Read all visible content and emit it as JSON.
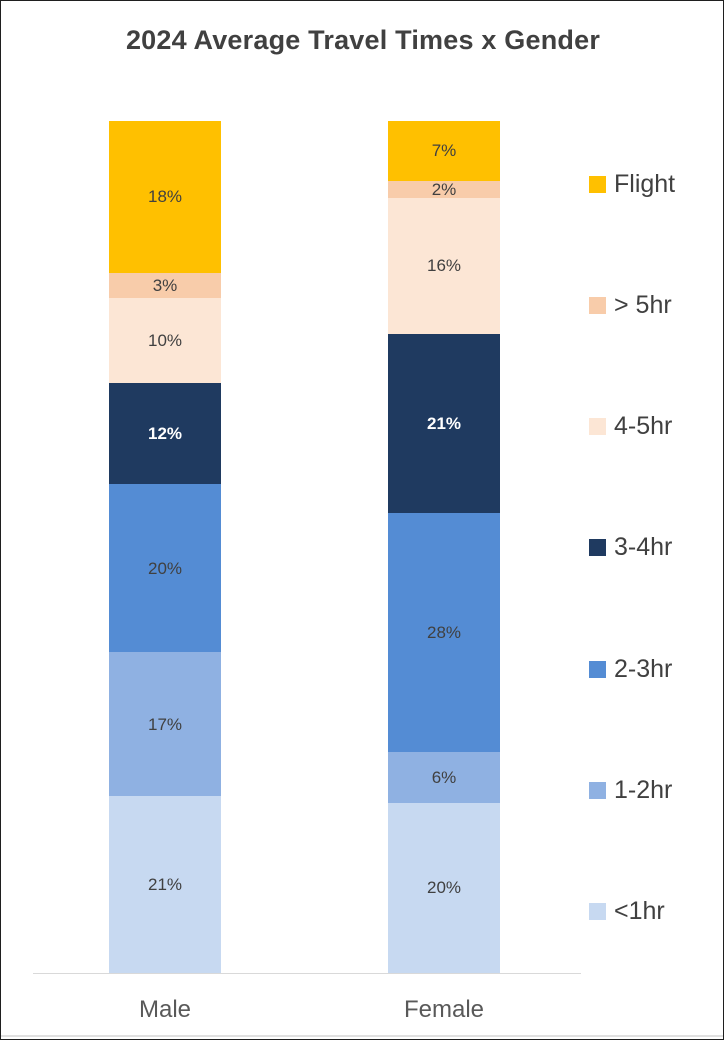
{
  "chart_data": {
    "type": "bar",
    "stacked": true,
    "percent_stacked": true,
    "title": "2024 Average Travel Times x Gender",
    "categories": [
      "Male",
      "Female"
    ],
    "series": [
      {
        "name": "<1hr",
        "color": "#C7D9F1",
        "values": [
          21,
          20
        ],
        "labels": [
          "21%",
          "20%"
        ],
        "label_color": "#404040",
        "label_bold": false
      },
      {
        "name": "1-2hr",
        "color": "#8FB1E2",
        "values": [
          17,
          6
        ],
        "labels": [
          "17%",
          "6%"
        ],
        "label_color": "#404040",
        "label_bold": false
      },
      {
        "name": "2-3hr",
        "color": "#548CD4",
        "values": [
          20,
          28
        ],
        "labels": [
          "20%",
          "28%"
        ],
        "label_color": "#404040",
        "label_bold": false
      },
      {
        "name": "3-4hr",
        "color": "#1F3A60",
        "values": [
          12,
          21
        ],
        "labels": [
          "12%",
          "21%"
        ],
        "label_color": "#FFFFFF",
        "label_bold": true
      },
      {
        "name": "4-5hr",
        "color": "#FCE6D5",
        "values": [
          10,
          16
        ],
        "labels": [
          "10%",
          "16%"
        ],
        "label_color": "#404040",
        "label_bold": false
      },
      {
        "name": "> 5hr",
        "color": "#F8CCAA",
        "values": [
          3,
          2
        ],
        "labels": [
          "3%",
          "2%"
        ],
        "label_color": "#404040",
        "label_bold": false
      },
      {
        "name": "Flight",
        "color": "#FFC000",
        "values": [
          18,
          7
        ],
        "labels": [
          "18%",
          "7%"
        ],
        "label_color": "#404040",
        "label_bold": false
      }
    ],
    "legend": {
      "position": "right",
      "order_top_to_bottom": [
        "Flight",
        "> 5hr",
        "4-5hr",
        "3-4hr",
        "2-3hr",
        "1-2hr",
        "<1hr"
      ]
    },
    "xlabel": "",
    "ylabel": "",
    "grid": false
  }
}
